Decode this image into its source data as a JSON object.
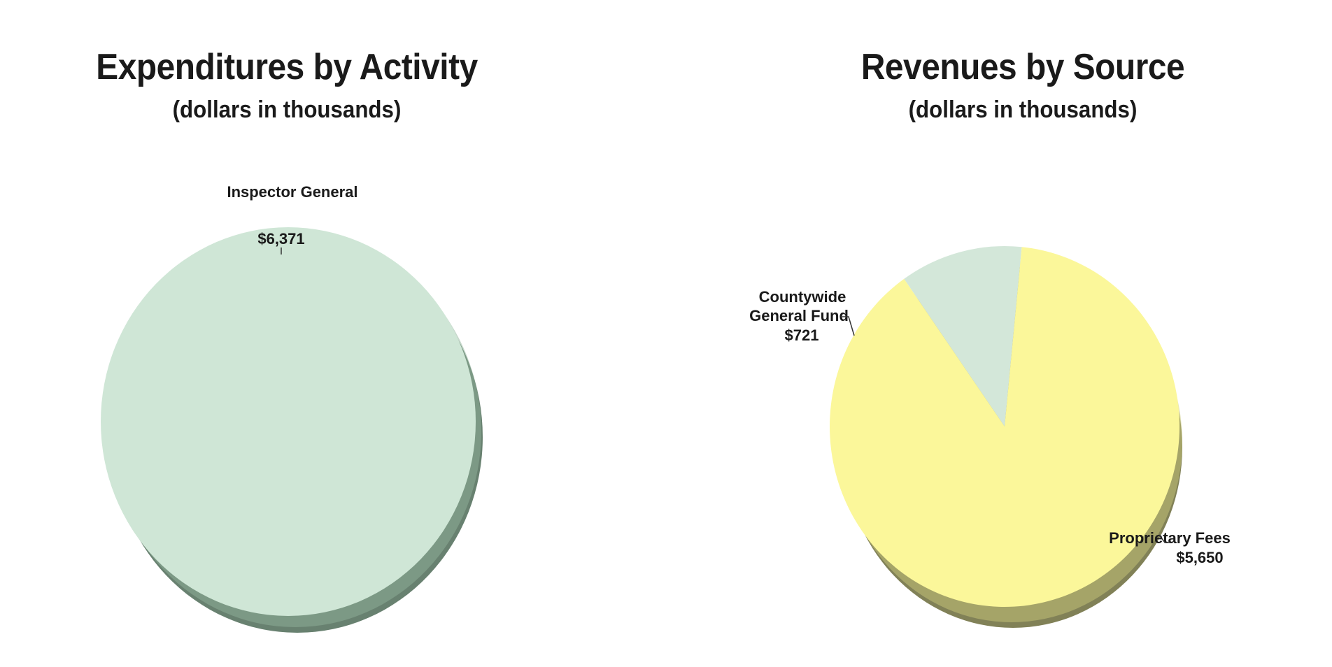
{
  "chart_data": [
    {
      "type": "pie",
      "title": "Expenditures by Activity",
      "subtitle": "(dollars in thousands)",
      "slices": [
        {
          "label": "Inspector General",
          "display_value": "$6,371",
          "value": 6371,
          "color": "#cfe6d6"
        }
      ]
    },
    {
      "type": "pie",
      "title": "Revenues by Source",
      "subtitle": "(dollars in thousands)",
      "slices": [
        {
          "label": "Countywide General Fund",
          "display_value": "$721",
          "value": 721,
          "color": "#d3e7d9"
        },
        {
          "label": "Proprietary Fees",
          "display_value": "$5,650",
          "value": 5650,
          "color": "#fbf79a"
        }
      ]
    }
  ]
}
